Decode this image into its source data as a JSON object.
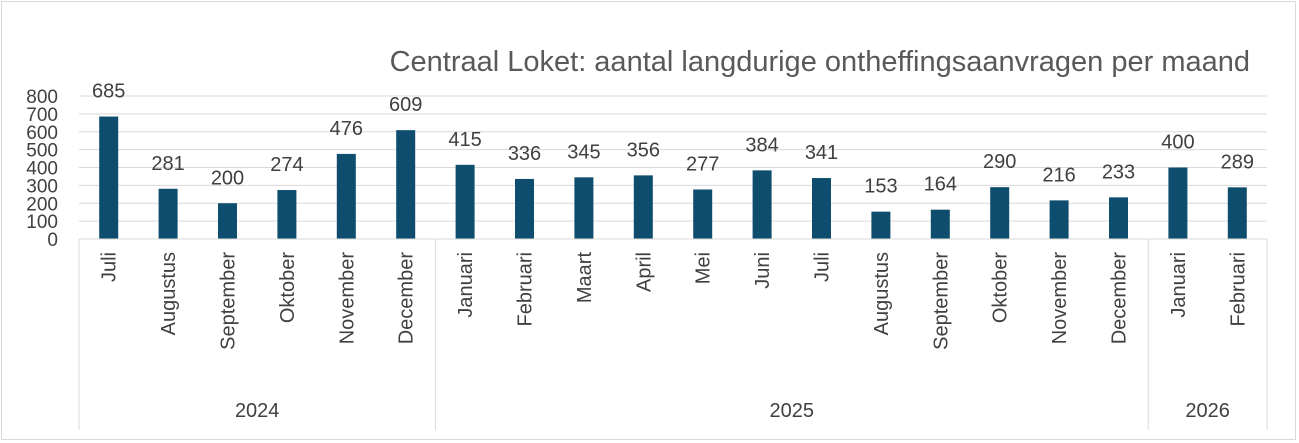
{
  "chart_data": {
    "type": "bar",
    "title": "Centraal Loket: aantal langdurige ontheffingsaanvragen per maand",
    "xlabel": "",
    "ylabel": "",
    "ylim": [
      0,
      800
    ],
    "yticks": [
      0,
      100,
      200,
      300,
      400,
      500,
      600,
      700,
      800
    ],
    "grid": true,
    "legend": "none",
    "bar_color": "#0e4d6e",
    "groups": [
      {
        "label": "2024",
        "count": 6
      },
      {
        "label": "2025",
        "count": 12
      },
      {
        "label": "2026",
        "count": 2
      }
    ],
    "categories": [
      "Juli",
      "Augustus",
      "September",
      "Oktober",
      "November",
      "December",
      "Januari",
      "Februari",
      "Maart",
      "April",
      "Mei",
      "Juni",
      "Juli",
      "Augustus",
      "September",
      "Oktober",
      "November",
      "December",
      "Januari",
      "Februari"
    ],
    "values": [
      685,
      281,
      200,
      274,
      476,
      609,
      415,
      336,
      345,
      356,
      277,
      384,
      341,
      153,
      164,
      290,
      216,
      233,
      400,
      289
    ]
  }
}
